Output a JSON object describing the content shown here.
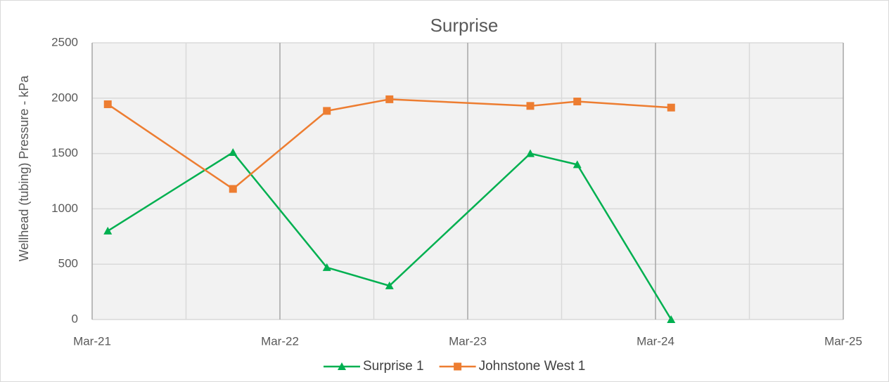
{
  "chart_data": {
    "type": "line",
    "title": "Surprise",
    "y_label": "Wellhead (tubing) Pressure - kPa",
    "x": [
      "2021-04",
      "2021-12",
      "2022-06",
      "2022-10",
      "2023-07",
      "2023-10",
      "2024-04"
    ],
    "series": [
      {
        "name": "Surprise 1",
        "color": "#00b050",
        "marker": "triangle",
        "values": [
          800,
          1510,
          470,
          305,
          1500,
          1400,
          0
        ]
      },
      {
        "name": "Johnstone West 1",
        "color": "#ed7d31",
        "marker": "square",
        "values": [
          1945,
          1180,
          1885,
          1990,
          1930,
          1970,
          1915
        ]
      }
    ],
    "xlim": [
      "2021-03",
      "2025-03"
    ],
    "xticks": [
      {
        "value": "2021-03",
        "label": "Mar-21"
      },
      {
        "value": "2022-03",
        "label": "Mar-22"
      },
      {
        "value": "2023-03",
        "label": "Mar-23"
      },
      {
        "value": "2024-03",
        "label": "Mar-24"
      },
      {
        "value": "2025-03",
        "label": "Mar-25"
      }
    ],
    "x_minor_gridlines": [
      "2021-09",
      "2022-09",
      "2023-09",
      "2024-09"
    ],
    "ylim": [
      0,
      2500
    ],
    "yticks": [
      0,
      500,
      1000,
      1500,
      2000,
      2500
    ],
    "grid": true,
    "legend": "bottom"
  }
}
